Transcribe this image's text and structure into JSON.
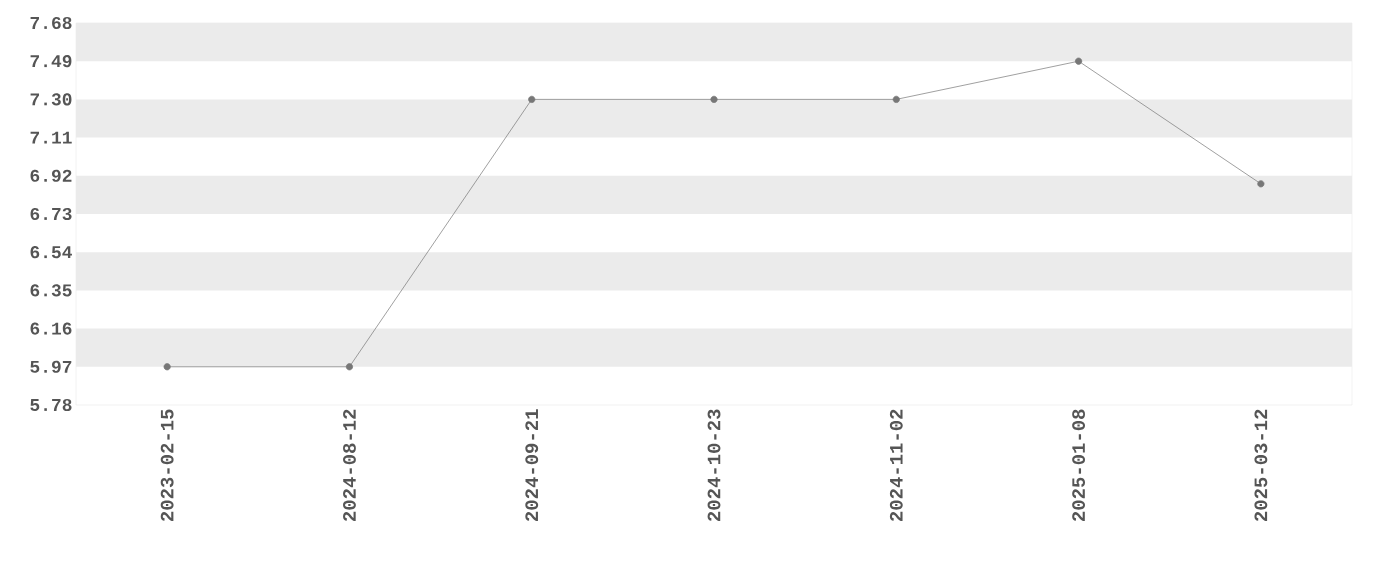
{
  "chart_data": {
    "type": "line",
    "categories": [
      "2023-02-15",
      "2024-08-12",
      "2024-09-21",
      "2024-10-23",
      "2024-11-02",
      "2025-01-08",
      "2025-03-12"
    ],
    "values": [
      5.97,
      5.97,
      7.3,
      7.3,
      7.3,
      7.49,
      6.88
    ],
    "color": "#777777",
    "ylim": [
      5.78,
      7.68
    ],
    "yticks": [
      5.78,
      5.97,
      6.16,
      6.35,
      6.54,
      6.73,
      6.92,
      7.11,
      {
        "value": 7.3,
        "label": "7.30"
      },
      7.49,
      7.68
    ],
    "bands": [
      {
        "axis": "y",
        "from": 5.97,
        "to": 6.16,
        "color": "#ebebeb"
      },
      {
        "axis": "y",
        "from": 6.35,
        "to": 6.54,
        "color": "#ebebeb"
      },
      {
        "axis": "y",
        "from": 6.73,
        "to": 6.92,
        "color": "#ebebeb"
      },
      {
        "axis": "y",
        "from": 7.11,
        "to": 7.3,
        "color": "#ebebeb"
      },
      {
        "axis": "y",
        "from": 7.49,
        "to": 7.68,
        "color": "#ebebeb"
      }
    ],
    "marker": "circle",
    "line_style": "solid"
  }
}
